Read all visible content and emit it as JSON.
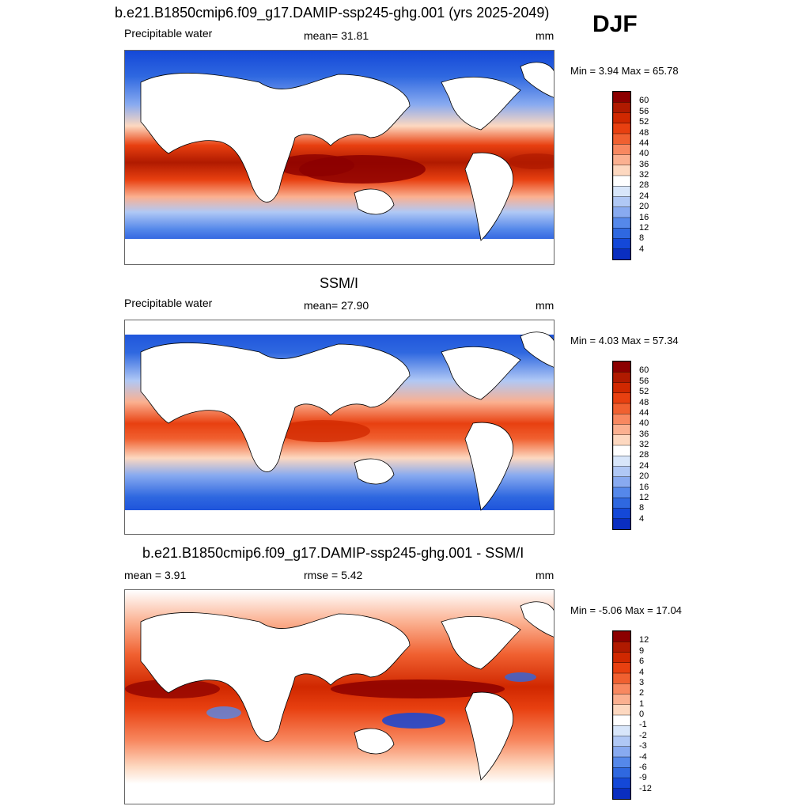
{
  "season": "DJF",
  "panels": [
    {
      "title": "b.e21.B1850cmip6.f09_g17.DAMIP-ssp245-ghg.001 (yrs 2025-2049)",
      "left_label": "Precipitable water",
      "center_label": "mean=  31.81",
      "right_label": "mm",
      "minmax": "Min =   3.94 Max =  65.78",
      "colorbar_labels": [
        "60",
        "56",
        "52",
        "48",
        "44",
        "40",
        "36",
        "32",
        "28",
        "24",
        "20",
        "16",
        "12",
        "8",
        "4"
      ]
    },
    {
      "title": "SSM/I",
      "left_label": "Precipitable water",
      "center_label": "mean=  27.90",
      "right_label": "mm",
      "minmax": "Min =   4.03 Max =  57.34",
      "colorbar_labels": [
        "60",
        "56",
        "52",
        "48",
        "44",
        "40",
        "36",
        "32",
        "28",
        "24",
        "20",
        "16",
        "12",
        "8",
        "4"
      ]
    },
    {
      "title": "b.e21.B1850cmip6.f09_g17.DAMIP-ssp245-ghg.001 - SSM/I",
      "left_label": "mean =   3.91",
      "center_label": "rmse =   5.42",
      "right_label": "mm",
      "minmax": "Min =  -5.06 Max =  17.04",
      "colorbar_labels": [
        "12",
        "9",
        "6",
        "4",
        "3",
        "2",
        "1",
        "0",
        "-1",
        "-2",
        "-3",
        "-4",
        "-6",
        "-9",
        "-12"
      ]
    }
  ],
  "colorbar_colors_top_to_bottom": [
    "#8c0000",
    "#b01a00",
    "#d02800",
    "#e84010",
    "#f06030",
    "#f88860",
    "#fbb090",
    "#fdd8c0",
    "#ffffff",
    "#d8e6fa",
    "#b0c8f5",
    "#88aaf0",
    "#5588ea",
    "#2f68e0",
    "#1448d8",
    "#0a2ec0",
    "#000a8a"
  ],
  "colors": {
    "land": "#ffffff",
    "coastline": "#000000"
  },
  "chart_data": [
    {
      "type": "heatmap",
      "title": "b.e21.B1850cmip6.f09_g17.DAMIP-ssp245-ghg.001 (yrs 2025-2049)",
      "variable": "Precipitable water",
      "units": "mm",
      "mean": 31.81,
      "min": 3.94,
      "max": 65.78,
      "contour_levels": [
        4,
        8,
        12,
        16,
        20,
        24,
        28,
        32,
        36,
        40,
        44,
        48,
        52,
        56,
        60
      ],
      "lat_profile_deg": [
        -80,
        -60,
        -40,
        -20,
        0,
        20,
        40,
        60,
        80
      ],
      "lat_profile_value_mm": [
        4,
        8,
        14,
        32,
        54,
        34,
        16,
        8,
        4
      ]
    },
    {
      "type": "heatmap",
      "title": "SSM/I",
      "variable": "Precipitable water",
      "units": "mm",
      "mean": 27.9,
      "min": 4.03,
      "max": 57.34,
      "contour_levels": [
        4,
        8,
        12,
        16,
        20,
        24,
        28,
        32,
        36,
        40,
        44,
        48,
        52,
        56,
        60
      ],
      "lat_profile_deg": [
        -60,
        -40,
        -20,
        0,
        20,
        40,
        60
      ],
      "lat_profile_value_mm": [
        8,
        12,
        28,
        46,
        30,
        14,
        8
      ]
    },
    {
      "type": "heatmap",
      "title": "b.e21.B1850cmip6.f09_g17.DAMIP-ssp245-ghg.001 - SSM/I",
      "units": "mm",
      "mean": 3.91,
      "rmse": 5.42,
      "min": -5.06,
      "max": 17.04,
      "contour_levels": [
        -12,
        -9,
        -6,
        -4,
        -3,
        -2,
        -1,
        0,
        1,
        2,
        3,
        4,
        6,
        9,
        12
      ],
      "lat_profile_deg": [
        -60,
        -40,
        -20,
        0,
        20,
        40,
        60
      ],
      "lat_profile_value_mm": [
        1,
        3,
        4,
        7,
        5,
        3,
        1
      ]
    }
  ]
}
